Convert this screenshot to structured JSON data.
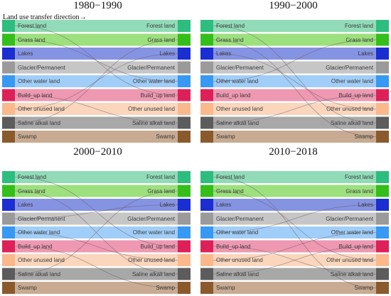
{
  "direction_label": "Land use transfer direction→",
  "categories": [
    {
      "name": "Forest land",
      "color": "#2dbd7f",
      "band": "#91dbb8"
    },
    {
      "name": "Grass land",
      "color": "#34be1a",
      "band": "#9de07e"
    },
    {
      "name": "Lakes",
      "color": "#1b2ed1",
      "band": "#8593e3"
    },
    {
      "name": "Glacier/Permanent",
      "color": "#9a9a9a",
      "band": "#c6c6c6"
    },
    {
      "name": "Other water land",
      "color": "#3799f3",
      "band": "#a1cef8"
    },
    {
      "name": "Build_up land",
      "color": "#de2059",
      "band": "#ee98b1"
    },
    {
      "name": "Other unused land",
      "color": "#fbb88b",
      "band": "#fad6bd"
    },
    {
      "name": "Saline alkali land",
      "color": "#5c5c5c",
      "band": "#a8a8a8"
    },
    {
      "name": "Swamp",
      "color": "#8b5a2c",
      "band": "#c8ab92"
    }
  ],
  "panels": [
    {
      "title": "1980−1990",
      "flows": [
        [
          7,
          1
        ],
        [
          5,
          7
        ],
        [
          0,
          5
        ],
        [
          1,
          4
        ],
        [
          6,
          2
        ]
      ]
    },
    {
      "title": "1990−2000",
      "flows": [
        [
          4,
          1
        ],
        [
          7,
          5
        ],
        [
          1,
          8
        ],
        [
          2,
          6
        ],
        [
          0,
          7
        ]
      ]
    },
    {
      "title": "2000−2010",
      "flows": [
        [
          1,
          7
        ],
        [
          0,
          5
        ],
        [
          7,
          1
        ],
        [
          4,
          6
        ],
        [
          5,
          8
        ],
        [
          3,
          2
        ]
      ]
    },
    {
      "title": "2010−2018",
      "flows": [
        [
          4,
          2
        ],
        [
          1,
          6
        ],
        [
          7,
          5
        ],
        [
          5,
          7
        ],
        [
          0,
          8
        ],
        [
          6,
          4
        ]
      ]
    }
  ]
}
